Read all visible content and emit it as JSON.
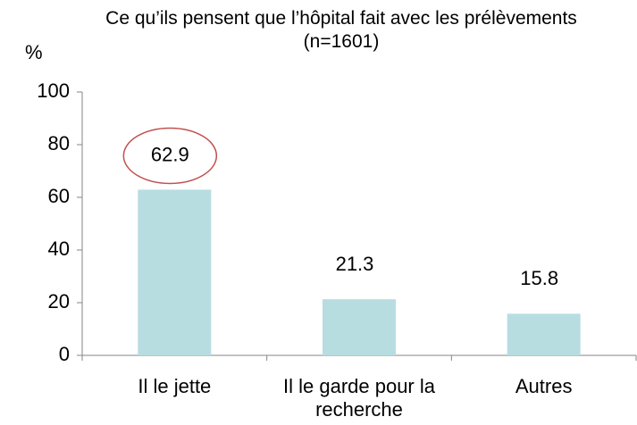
{
  "chart_data": {
    "type": "bar",
    "title": "Ce qu’ils pensent que l’hôpital fait avec les prélèvements (n=1601)",
    "y_label": "%",
    "categories": [
      "Il le jette",
      "Il le garde pour la recherche",
      "Autres"
    ],
    "values": [
      62.9,
      21.3,
      15.8
    ],
    "color": "#b7dde1",
    "ylim": [
      0,
      100
    ],
    "yticks": [
      0,
      20,
      40,
      60,
      80,
      100
    ],
    "grid": false,
    "highlight": 0
  }
}
